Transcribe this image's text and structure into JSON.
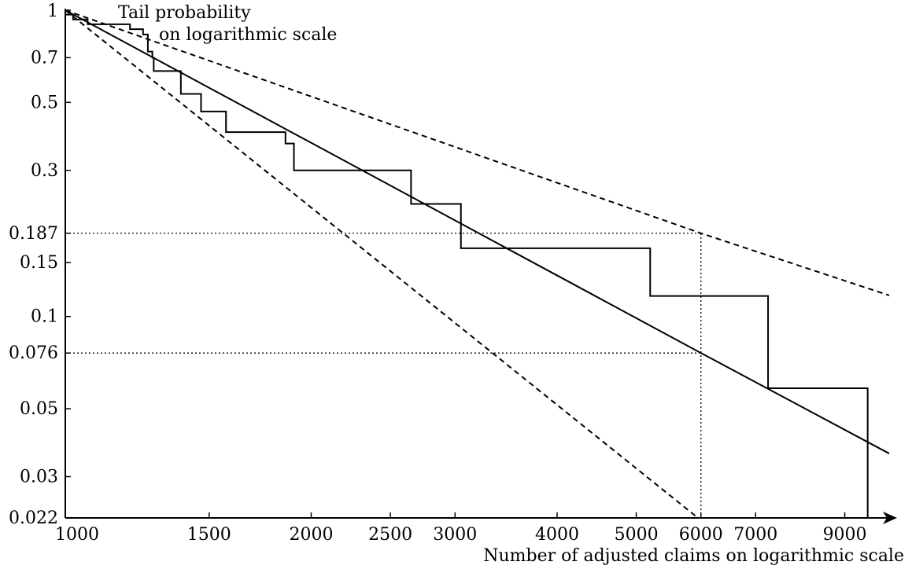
{
  "chart_data": {
    "type": "line",
    "x_scale": "log",
    "y_scale": "log",
    "xlim": [
      1000,
      10200
    ],
    "ylim": [
      0.022,
      1
    ],
    "ylabel_lines": [
      "Tail probability",
      "on logarithmic scale"
    ],
    "xlabel": "Number of adjusted claims on logarithmic scale",
    "x_ticks": [
      {
        "value": 1000,
        "label": "1000"
      },
      {
        "value": 1500,
        "label": "1500"
      },
      {
        "value": 2000,
        "label": "2000"
      },
      {
        "value": 2500,
        "label": "2500"
      },
      {
        "value": 3000,
        "label": "3000"
      },
      {
        "value": 4000,
        "label": "4000"
      },
      {
        "value": 5000,
        "label": "5000"
      },
      {
        "value": 6000,
        "label": "6000"
      },
      {
        "value": 7000,
        "label": "7000"
      },
      {
        "value": 9000,
        "label": "9000"
      }
    ],
    "y_ticks": [
      {
        "value": 1,
        "label": "1"
      },
      {
        "value": 0.7,
        "label": "0.7"
      },
      {
        "value": 0.5,
        "label": "0.5"
      },
      {
        "value": 0.3,
        "label": "0.3"
      },
      {
        "value": 0.187,
        "label": "0.187"
      },
      {
        "value": 0.15,
        "label": "0.15"
      },
      {
        "value": 0.1,
        "label": "0.1"
      },
      {
        "value": 0.076,
        "label": "0.076"
      },
      {
        "value": 0.05,
        "label": "0.05"
      },
      {
        "value": 0.03,
        "label": "0.03"
      },
      {
        "value": 0.022,
        "label": "0.022"
      }
    ],
    "series": [
      {
        "style": "step",
        "stroke": "solid",
        "points": [
          [
            1000,
            1
          ],
          [
            1000,
            0.967
          ],
          [
            1022,
            0.967
          ],
          [
            1022,
            0.933
          ],
          [
            1065,
            0.933
          ],
          [
            1065,
            0.9
          ],
          [
            1200,
            0.9
          ],
          [
            1200,
            0.867
          ],
          [
            1245,
            0.867
          ],
          [
            1245,
            0.833
          ],
          [
            1262,
            0.833
          ],
          [
            1262,
            0.733
          ],
          [
            1278,
            0.733
          ],
          [
            1278,
            0.7
          ],
          [
            1283,
            0.7
          ],
          [
            1283,
            0.633
          ],
          [
            1385,
            0.633
          ],
          [
            1385,
            0.533
          ],
          [
            1466,
            0.533
          ],
          [
            1466,
            0.467
          ],
          [
            1573,
            0.467
          ],
          [
            1573,
            0.4
          ],
          [
            1860,
            0.4
          ],
          [
            1860,
            0.367
          ],
          [
            1905,
            0.367
          ],
          [
            1905,
            0.3
          ],
          [
            2650,
            0.3
          ],
          [
            2650,
            0.233
          ],
          [
            3050,
            0.233
          ],
          [
            3050,
            0.2
          ],
          [
            3050,
            0.167
          ],
          [
            5200,
            0.167
          ],
          [
            5200,
            0.1167
          ],
          [
            7250,
            0.1167
          ],
          [
            7250,
            0.0583
          ],
          [
            9600,
            0.0583
          ],
          [
            9600,
            0.022
          ]
        ]
      },
      {
        "style": "line",
        "stroke": "solid",
        "points": [
          [
            1000,
            1
          ],
          [
            6000,
            0.076
          ],
          [
            10200,
            0.0357
          ]
        ]
      },
      {
        "style": "line",
        "stroke": "dashed",
        "points": [
          [
            1000,
            1
          ],
          [
            6000,
            0.187
          ],
          [
            10200,
            0.1172
          ]
        ]
      },
      {
        "style": "line",
        "stroke": "dashed",
        "points": [
          [
            1000,
            1
          ],
          [
            5950,
            0.022
          ]
        ]
      }
    ],
    "reference_lines": [
      {
        "kind": "horizontal",
        "y": 0.187,
        "x_to": 6000,
        "stroke": "dotted"
      },
      {
        "kind": "horizontal",
        "y": 0.076,
        "x_to": 6000,
        "stroke": "dotted"
      },
      {
        "kind": "vertical",
        "x": 6000,
        "y_from": 0.022,
        "y_to": 0.187,
        "stroke": "dotted"
      }
    ]
  }
}
